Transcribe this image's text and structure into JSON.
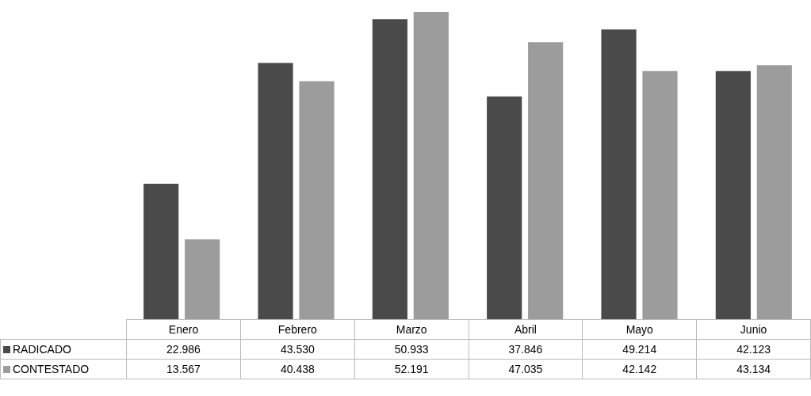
{
  "chart_data": {
    "type": "bar",
    "categories": [
      "Enero",
      "Febrero",
      "Marzo",
      "Abril",
      "Mayo",
      "Junio"
    ],
    "series": [
      {
        "name": "RADICADO",
        "color": "#4a4a4a",
        "values": [
          22986,
          43530,
          50933,
          37846,
          49214,
          42123
        ],
        "value_labels": [
          "22.986",
          "43.530",
          "50.933",
          "37.846",
          "49.214",
          "42.123"
        ]
      },
      {
        "name": "CONTESTADO",
        "color": "#9c9c9c",
        "values": [
          13567,
          40438,
          52191,
          47035,
          42142,
          43134
        ],
        "value_labels": [
          "13.567",
          "40.438",
          "52.191",
          "47.035",
          "42.142",
          "43.134"
        ]
      }
    ],
    "legend": "bottom"
  }
}
